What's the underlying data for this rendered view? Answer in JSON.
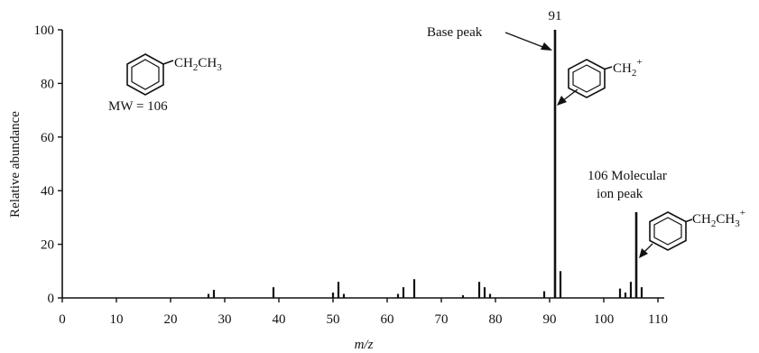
{
  "chart_data": {
    "type": "bar",
    "title": "",
    "xlabel": "m/z",
    "ylabel": "Relative abundance",
    "xlim": [
      0,
      110
    ],
    "ylim": [
      0,
      100
    ],
    "xticks": [
      "0",
      "10",
      "20",
      "30",
      "40",
      "50",
      "60",
      "70",
      "80",
      "90",
      "100",
      "110"
    ],
    "yticks": [
      "0",
      "20",
      "40",
      "60",
      "80",
      "100"
    ],
    "grid": false,
    "x": [
      27,
      28,
      39,
      50,
      51,
      52,
      62,
      63,
      65,
      74,
      77,
      78,
      79,
      89,
      91,
      92,
      103,
      104,
      105,
      106,
      107
    ],
    "y": [
      1.5,
      3,
      4,
      2,
      6,
      1.5,
      1.5,
      4,
      7,
      1,
      6,
      4,
      1.5,
      2.5,
      100,
      10,
      3.5,
      2,
      6,
      32,
      4
    ],
    "annotations": {
      "peak_91_label": "91",
      "base_peak": "Base peak",
      "molecular_ion_line1": "106 Molecular",
      "molecular_ion_line2": "ion peak",
      "mw": "MW = 106",
      "parent_formula": {
        "main": "CH",
        "s1": "2",
        "mid": "CH",
        "s2": "3"
      },
      "fragment_91_formula": {
        "main": "CH",
        "s1": "2",
        "charge": "+"
      },
      "fragment_106_formula": {
        "main": "CH",
        "s1": "2",
        "mid": "CH",
        "s2": "3",
        "charge": "+"
      }
    }
  }
}
